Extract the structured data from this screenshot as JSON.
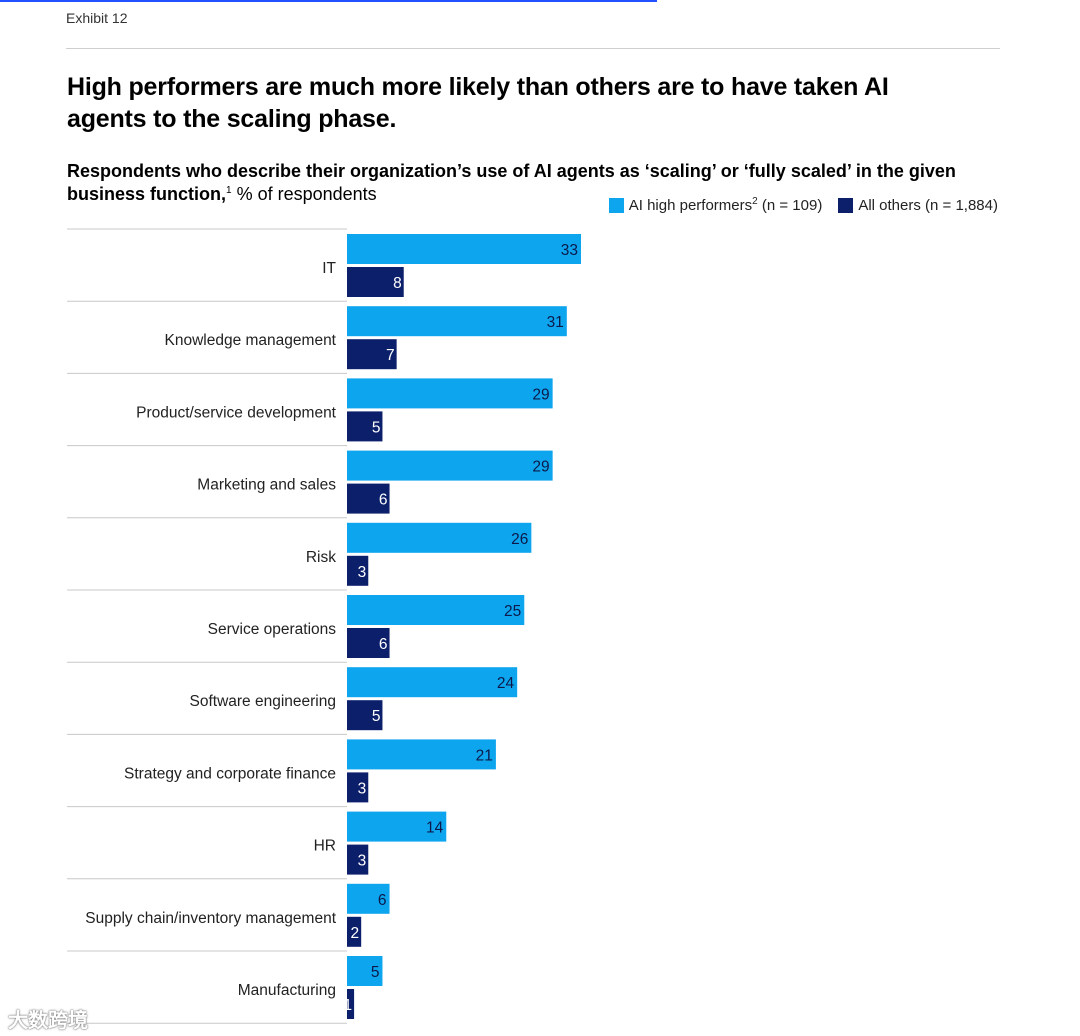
{
  "header": {
    "exhibit": "Exhibit 12",
    "title": "High performers are much more likely than others are to have taken AI agents to the scaling phase.",
    "subtitle_bold": "Respondents who describe their organization’s use of AI agents as ‘scaling’ or ‘fully scaled’ in the given business function,",
    "subtitle_sup": "1",
    "subtitle_rest": " % of respondents"
  },
  "legend": {
    "series1_label": "AI high performers",
    "series1_sup": "2",
    "series1_n": " (n = 109)",
    "series2_label": "All others (n = 1,884)"
  },
  "colors": {
    "series1": "#0ea5ef",
    "series2": "#0c1f6b",
    "gridline": "#c8c8c8"
  },
  "chart_data": {
    "type": "bar",
    "orientation": "horizontal",
    "title": "High performers are much more likely than others are to have taken AI agents to the scaling phase.",
    "ylabel": "",
    "xlabel": "% of respondents",
    "xlim": [
      0,
      33
    ],
    "categories": [
      "IT",
      "Knowledge management",
      "Product/service development",
      "Marketing and sales",
      "Risk",
      "Service operations",
      "Software engineering",
      "Strategy and corporate finance",
      "HR",
      "Supply chain/inventory management",
      "Manufacturing"
    ],
    "series": [
      {
        "name": "AI high performers (n = 109)",
        "values": [
          33,
          31,
          29,
          29,
          26,
          25,
          24,
          21,
          14,
          6,
          5
        ]
      },
      {
        "name": "All others (n = 1,884)",
        "values": [
          8,
          7,
          5,
          6,
          3,
          6,
          5,
          3,
          3,
          2,
          1
        ]
      }
    ]
  },
  "watermark": "大数跨境"
}
